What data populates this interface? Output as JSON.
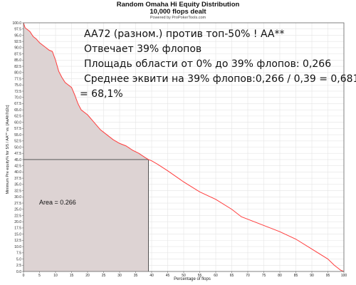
{
  "chart_data": {
    "type": "area",
    "title": "Random Omaha Hi Equity Distribution",
    "subtitle": "10,000 flops dealt",
    "credit": "Powered by ProPokerTools.com",
    "xlabel": "Percentage of flops",
    "ylabel": "Minimum Pre equity% for 5/5 / AA** vs. [AaAh7d2c]",
    "xlim": [
      0,
      100
    ],
    "ylim": [
      0,
      100
    ],
    "x_ticks": [
      "0",
      "5",
      "10",
      "15",
      "20",
      "25",
      "30",
      "35",
      "40",
      "45",
      "50",
      "55",
      "60",
      "65",
      "70",
      "75",
      "80",
      "85",
      "90",
      "95",
      "100"
    ],
    "y_ticks": [
      "0.0",
      "2.5",
      "5.0",
      "7.5",
      "10.0",
      "12.5",
      "15.0",
      "17.5",
      "20.0",
      "22.5",
      "25.0",
      "27.5",
      "30.0",
      "32.5",
      "35.0",
      "37.5",
      "40.0",
      "42.5",
      "45.0",
      "47.5",
      "50.0",
      "52.5",
      "55.0",
      "57.5",
      "60.0",
      "62.5",
      "65.0",
      "67.5",
      "70.0",
      "72.5",
      "75.0",
      "77.5",
      "80.0",
      "82.5",
      "85.0",
      "87.5",
      "90.0",
      "92.5",
      "95.0",
      "97.5",
      "100.0"
    ],
    "grid": true,
    "line_color": "#ff3c3c",
    "fill_color": "#ddd3d3",
    "series": [
      {
        "x": [
          0,
          0.5,
          1,
          2,
          3,
          4,
          5,
          6,
          7,
          8,
          9,
          10,
          11,
          12,
          13,
          14,
          15,
          16,
          17,
          18,
          20,
          22,
          24,
          26,
          28,
          30,
          32,
          34,
          36,
          38,
          39,
          40,
          42,
          45,
          50,
          55,
          60,
          65,
          68,
          70,
          75,
          80,
          85,
          90,
          95,
          97,
          98,
          99,
          100
        ],
        "y": [
          100,
          98,
          97.5,
          96.5,
          94.5,
          93.5,
          92,
          91,
          90,
          89,
          88.5,
          85,
          80.5,
          78,
          76,
          75,
          74,
          71,
          67.5,
          65,
          63,
          60,
          57,
          55,
          53,
          51.5,
          50.5,
          48.8,
          47.5,
          45.8,
          45,
          44.5,
          43,
          40.5,
          36,
          32,
          29,
          25,
          22,
          21,
          18.5,
          16,
          13,
          9,
          5,
          2.5,
          1.5,
          0.5,
          0
        ]
      }
    ],
    "shaded_region": {
      "x_from": 0,
      "x_to": 39,
      "y_level": 45
    },
    "area_label": "Area = 0.266"
  },
  "annotation": {
    "line1": "AA72 (разном.) против топ-50% ! AA**",
    "line2": "Отвечает 39% флопов",
    "line3": "Площадь области от 0% до 39% флопов: 0,266",
    "line4": "Среднее эквити на 39% флопов:0,266 / 0,39 = 0,681",
    "line5": "= 68,1%"
  }
}
